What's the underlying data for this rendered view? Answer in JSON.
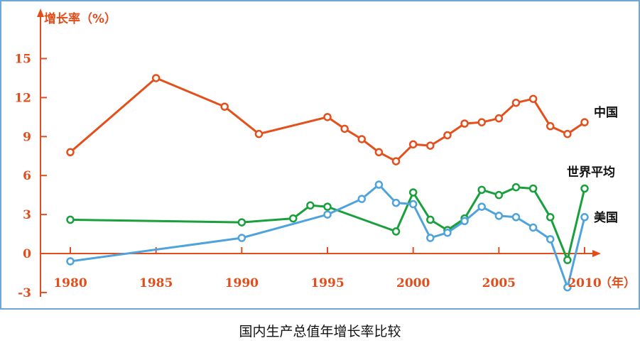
{
  "caption": "国内生产总值年增长率比较",
  "colors": {
    "axis": "#e04e1b",
    "china": "#e4501c",
    "world": "#19a03c",
    "usa": "#4fa3dc",
    "frame": "#6fa8d6"
  },
  "chart_data": {
    "type": "line",
    "title": "国内生产总值年增长率比较",
    "ylabel": "增长率（%）",
    "xlabel": "（年）",
    "ylim": [
      -3,
      18
    ],
    "xlim": [
      1980,
      2010
    ],
    "y_ticks": [
      "-3",
      "0",
      "3",
      "6",
      "9",
      "12",
      "15"
    ],
    "x_ticks": [
      "1980",
      "1985",
      "1990",
      "1995",
      "2000",
      "2005",
      "2010"
    ],
    "grid": false,
    "legend": "series names printed at right end of each line",
    "series": [
      {
        "name": "中国",
        "color": "#e4501c",
        "x": [
          1980,
          1985,
          1989,
          1991,
          1995,
          1996,
          1997,
          1998,
          1999,
          2000,
          2001,
          2002,
          2003,
          2004,
          2005,
          2006,
          2007,
          2008,
          2009,
          2010
        ],
        "y": [
          7.8,
          13.5,
          11.3,
          9.2,
          10.5,
          9.6,
          8.8,
          7.8,
          7.1,
          8.4,
          8.3,
          9.1,
          10.0,
          10.1,
          10.4,
          11.6,
          11.9,
          9.8,
          9.2,
          10.1
        ]
      },
      {
        "name": "世界平均",
        "color": "#19a03c",
        "x": [
          1980,
          1990,
          1993,
          1994,
          1995,
          1999,
          2000,
          2001,
          2002,
          2003,
          2004,
          2005,
          2006,
          2007,
          2008,
          2009,
          2010
        ],
        "y": [
          2.6,
          2.4,
          2.7,
          3.7,
          3.6,
          1.7,
          4.7,
          2.6,
          1.8,
          2.7,
          4.9,
          4.5,
          5.1,
          5.0,
          2.8,
          -0.5,
          5.0
        ]
      },
      {
        "name": "美国",
        "color": "#4fa3dc",
        "x": [
          1980,
          1990,
          1995,
          1997,
          1998,
          1999,
          2000,
          2001,
          2002,
          2003,
          2004,
          2005,
          2006,
          2007,
          2008,
          2009,
          2010
        ],
        "y": [
          -0.6,
          1.2,
          3.0,
          4.2,
          5.3,
          3.9,
          3.8,
          1.2,
          1.6,
          2.5,
          3.6,
          2.9,
          2.8,
          2.0,
          1.1,
          -2.6,
          2.8
        ]
      }
    ]
  }
}
